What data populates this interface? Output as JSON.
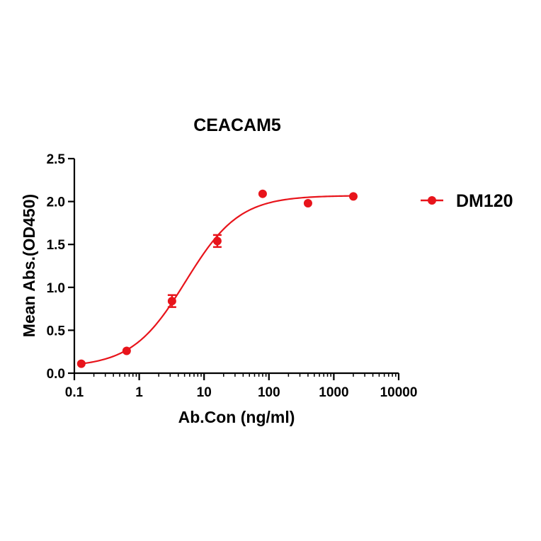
{
  "chart_data": {
    "type": "scatter",
    "title": "CEACAM5",
    "xlabel": "Ab.Con (ng/ml)",
    "ylabel": "Mean Abs.(OD450)",
    "xscale": "log",
    "xlim": [
      0.1,
      10000
    ],
    "ylim": [
      0,
      2.5
    ],
    "x_ticks": [
      0.1,
      1,
      10,
      100,
      1000,
      10000
    ],
    "x_tick_labels": [
      "0.1",
      "1",
      "10",
      "100",
      "1000",
      "10000"
    ],
    "y_ticks": [
      0,
      0.5,
      1,
      1.5,
      2,
      2.5
    ],
    "y_tick_labels": [
      "0.0",
      "0.5",
      "1.0",
      "1.5",
      "2.0",
      "2.5"
    ],
    "grid": false,
    "legend_position": "right",
    "color": "#e8141b",
    "series": [
      {
        "name": "DM120",
        "points": [
          {
            "x": 0.128,
            "y": 0.11,
            "err": 0.0
          },
          {
            "x": 0.64,
            "y": 0.26,
            "err": 0.0
          },
          {
            "x": 3.2,
            "y": 0.84,
            "err": 0.07
          },
          {
            "x": 16,
            "y": 1.54,
            "err": 0.07
          },
          {
            "x": 80,
            "y": 2.09,
            "err": 0.0
          },
          {
            "x": 400,
            "y": 1.98,
            "err": 0.0
          },
          {
            "x": 2000,
            "y": 2.06,
            "err": 0.0
          }
        ],
        "fit": {
          "model": "4PL",
          "bottom": 0.07,
          "top": 2.07,
          "ec50": 5.2,
          "hill": 1.05
        }
      }
    ]
  }
}
